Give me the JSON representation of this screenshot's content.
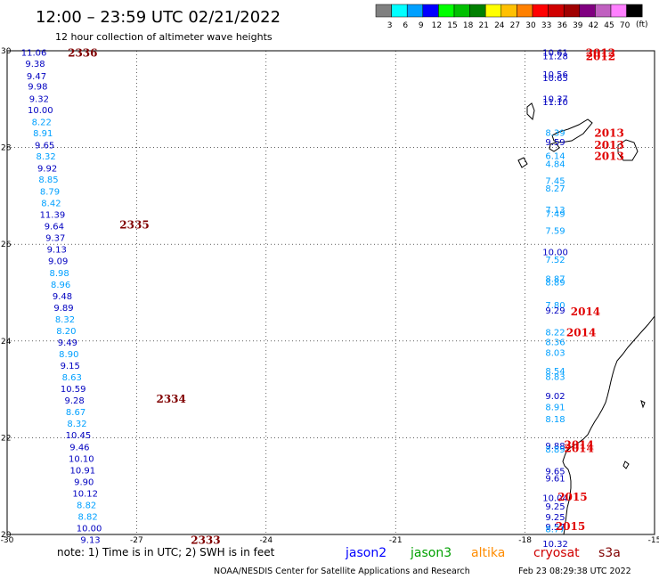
{
  "header": {
    "title": "12:00 – 23:59 UTC 02/21/2022",
    "subtitle": "12 hour collection of altimeter wave heights"
  },
  "colorbar": {
    "unit": "(ft)",
    "bins": [
      {
        "label": "3",
        "color": "#808080"
      },
      {
        "label": "6",
        "color": "#00ffff"
      },
      {
        "label": "9",
        "color": "#00a0ff"
      },
      {
        "label": "12",
        "color": "#0000ff"
      },
      {
        "label": "15",
        "color": "#00ff00"
      },
      {
        "label": "18",
        "color": "#00c000"
      },
      {
        "label": "21",
        "color": "#008000"
      },
      {
        "label": "24",
        "color": "#ffff00"
      },
      {
        "label": "27",
        "color": "#ffc000"
      },
      {
        "label": "30",
        "color": "#ff8000"
      },
      {
        "label": "33",
        "color": "#ff0000"
      },
      {
        "label": "36",
        "color": "#d00000"
      },
      {
        "label": "39",
        "color": "#a00000"
      },
      {
        "label": "42",
        "color": "#800080"
      },
      {
        "label": "45",
        "color": "#c060c0"
      },
      {
        "label": "70",
        "color": "#ff80ff"
      },
      {
        "label": "",
        "color": "#000000"
      }
    ]
  },
  "map": {
    "lon_range": [
      -30,
      -15
    ],
    "lat_range": [
      20,
      30
    ],
    "lon_ticks": [
      "-30",
      "-27",
      "-24",
      "-21",
      "-18",
      "-15"
    ],
    "lat_ticks": [
      "30",
      "28",
      "26",
      "24",
      "22",
      "20"
    ]
  },
  "chart_data": {
    "type": "scatter",
    "title": "12:00 – 23:59 UTC 02/21/2022",
    "subtitle": "12 hour collection of altimeter wave heights",
    "xlim": [
      -30,
      -15
    ],
    "ylim": [
      20,
      30
    ],
    "tracks": [
      {
        "name": "west",
        "points": [
          {
            "lon": -29.38,
            "lat": 29.95,
            "swh": "11.06",
            "color": "#0000c0"
          },
          {
            "lon": -29.35,
            "lat": 29.72,
            "swh": "9.38",
            "color": "#0000c0"
          },
          {
            "lon": -29.32,
            "lat": 29.47,
            "swh": "9.47",
            "color": "#0000c0"
          },
          {
            "lon": -29.29,
            "lat": 29.25,
            "swh": "9.98",
            "color": "#0000c0"
          },
          {
            "lon": -29.26,
            "lat": 29.0,
            "swh": "9.32",
            "color": "#0000c0"
          },
          {
            "lon": -29.23,
            "lat": 28.77,
            "swh": "10.00",
            "color": "#0000c0"
          },
          {
            "lon": -29.2,
            "lat": 28.52,
            "swh": "8.22",
            "color": "#00a0ff"
          },
          {
            "lon": -29.17,
            "lat": 28.29,
            "swh": "8.91",
            "color": "#00a0ff"
          },
          {
            "lon": -29.13,
            "lat": 28.04,
            "swh": "9.65",
            "color": "#0000c0"
          },
          {
            "lon": -29.1,
            "lat": 27.81,
            "swh": "8.32",
            "color": "#00a0ff"
          },
          {
            "lon": -29.07,
            "lat": 27.56,
            "swh": "9.92",
            "color": "#0000c0"
          },
          {
            "lon": -29.04,
            "lat": 27.33,
            "swh": "8.85",
            "color": "#00a0ff"
          },
          {
            "lon": -29.01,
            "lat": 27.08,
            "swh": "8.79",
            "color": "#00a0ff"
          },
          {
            "lon": -28.98,
            "lat": 26.84,
            "swh": "8.42",
            "color": "#00a0ff"
          },
          {
            "lon": -28.95,
            "lat": 26.6,
            "swh": "11.39",
            "color": "#0000c0"
          },
          {
            "lon": -28.91,
            "lat": 26.36,
            "swh": "9.64",
            "color": "#0000c0"
          },
          {
            "lon": -28.88,
            "lat": 26.12,
            "swh": "9.37",
            "color": "#0000c0"
          },
          {
            "lon": -28.85,
            "lat": 25.88,
            "swh": "9.13",
            "color": "#0000c0"
          },
          {
            "lon": -28.82,
            "lat": 25.64,
            "swh": "9.09",
            "color": "#0000c0"
          },
          {
            "lon": -28.79,
            "lat": 25.4,
            "swh": "8.98",
            "color": "#00a0ff"
          },
          {
            "lon": -28.76,
            "lat": 25.16,
            "swh": "8.96",
            "color": "#00a0ff"
          },
          {
            "lon": -28.72,
            "lat": 24.92,
            "swh": "9.48",
            "color": "#0000c0"
          },
          {
            "lon": -28.69,
            "lat": 24.68,
            "swh": "9.89",
            "color": "#0000c0"
          },
          {
            "lon": -28.66,
            "lat": 24.44,
            "swh": "8.32",
            "color": "#00a0ff"
          },
          {
            "lon": -28.63,
            "lat": 24.2,
            "swh": "8.20",
            "color": "#00a0ff"
          },
          {
            "lon": -28.6,
            "lat": 23.96,
            "swh": "9.49",
            "color": "#0000c0"
          },
          {
            "lon": -28.57,
            "lat": 23.72,
            "swh": "8.90",
            "color": "#00a0ff"
          },
          {
            "lon": -28.54,
            "lat": 23.48,
            "swh": "9.15",
            "color": "#0000c0"
          },
          {
            "lon": -28.5,
            "lat": 23.24,
            "swh": "8.63",
            "color": "#00a0ff"
          },
          {
            "lon": -28.47,
            "lat": 23.0,
            "swh": "10.59",
            "color": "#0000c0"
          },
          {
            "lon": -28.44,
            "lat": 22.76,
            "swh": "9.28",
            "color": "#0000c0"
          },
          {
            "lon": -28.41,
            "lat": 22.52,
            "swh": "8.67",
            "color": "#00a0ff"
          },
          {
            "lon": -28.38,
            "lat": 22.28,
            "swh": "8.32",
            "color": "#00a0ff"
          },
          {
            "lon": -28.35,
            "lat": 22.04,
            "swh": "10.45",
            "color": "#0000c0"
          },
          {
            "lon": -28.32,
            "lat": 21.8,
            "swh": "9.46",
            "color": "#0000c0"
          },
          {
            "lon": -28.28,
            "lat": 21.56,
            "swh": "10.10",
            "color": "#0000c0"
          },
          {
            "lon": -28.25,
            "lat": 21.32,
            "swh": "10.91",
            "color": "#0000c0"
          },
          {
            "lon": -28.22,
            "lat": 21.08,
            "swh": "9.90",
            "color": "#0000c0"
          },
          {
            "lon": -28.19,
            "lat": 20.84,
            "swh": "10.12",
            "color": "#0000c0"
          },
          {
            "lon": -28.16,
            "lat": 20.6,
            "swh": "8.82",
            "color": "#00a0ff"
          },
          {
            "lon": -28.13,
            "lat": 20.36,
            "swh": "8.82",
            "color": "#00a0ff"
          },
          {
            "lon": -28.1,
            "lat": 20.12,
            "swh": "10.00",
            "color": "#0000c0"
          },
          {
            "lon": -28.07,
            "lat": 19.88,
            "swh": "9.13",
            "color": "#0000c0"
          }
        ]
      },
      {
        "name": "east",
        "points": [
          {
            "lon": -17.3,
            "lat": 29.95,
            "swh": "10.61",
            "color": "#0000c0"
          },
          {
            "lon": -17.3,
            "lat": 29.88,
            "swh": "11.28",
            "color": "#0000c0"
          },
          {
            "lon": -17.3,
            "lat": 29.5,
            "swh": "10.56",
            "color": "#0000c0"
          },
          {
            "lon": -17.3,
            "lat": 29.43,
            "swh": "10.65",
            "color": "#0000c0"
          },
          {
            "lon": -17.3,
            "lat": 29.0,
            "swh": "10.37",
            "color": "#0000c0"
          },
          {
            "lon": -17.3,
            "lat": 28.93,
            "swh": "11.10",
            "color": "#0000c0"
          },
          {
            "lon": -17.3,
            "lat": 28.3,
            "swh": "8.39",
            "color": "#00a0ff"
          },
          {
            "lon": -17.3,
            "lat": 28.1,
            "swh": "9.59",
            "color": "#0000c0"
          },
          {
            "lon": -17.3,
            "lat": 27.82,
            "swh": "6.14",
            "color": "#00a0ff"
          },
          {
            "lon": -17.3,
            "lat": 27.65,
            "swh": "4.84",
            "color": "#00a0ff"
          },
          {
            "lon": -17.3,
            "lat": 27.3,
            "swh": "7.45",
            "color": "#00a0ff"
          },
          {
            "lon": -17.3,
            "lat": 27.15,
            "swh": "8.27",
            "color": "#00a0ff"
          },
          {
            "lon": -17.3,
            "lat": 26.7,
            "swh": "7.13",
            "color": "#00a0ff"
          },
          {
            "lon": -17.3,
            "lat": 26.62,
            "swh": "7.49",
            "color": "#00a0ff"
          },
          {
            "lon": -17.3,
            "lat": 26.27,
            "swh": "7.59",
            "color": "#00a0ff"
          },
          {
            "lon": -17.3,
            "lat": 25.83,
            "swh": "10.00",
            "color": "#0000c0"
          },
          {
            "lon": -17.3,
            "lat": 25.67,
            "swh": "7.52",
            "color": "#00a0ff"
          },
          {
            "lon": -17.3,
            "lat": 25.28,
            "swh": "8.87",
            "color": "#00a0ff"
          },
          {
            "lon": -17.3,
            "lat": 25.2,
            "swh": "8.89",
            "color": "#00a0ff"
          },
          {
            "lon": -17.3,
            "lat": 24.73,
            "swh": "7.80",
            "color": "#00a0ff"
          },
          {
            "lon": -17.3,
            "lat": 24.62,
            "swh": "9.29",
            "color": "#0000c0"
          },
          {
            "lon": -17.3,
            "lat": 24.17,
            "swh": "8.22",
            "color": "#00a0ff"
          },
          {
            "lon": -17.3,
            "lat": 23.97,
            "swh": "8.36",
            "color": "#00a0ff"
          },
          {
            "lon": -17.3,
            "lat": 23.75,
            "swh": "8.03",
            "color": "#00a0ff"
          },
          {
            "lon": -17.3,
            "lat": 23.37,
            "swh": "8.54",
            "color": "#00a0ff"
          },
          {
            "lon": -17.3,
            "lat": 23.25,
            "swh": "8.83",
            "color": "#00a0ff"
          },
          {
            "lon": -17.3,
            "lat": 22.85,
            "swh": "9.02",
            "color": "#0000c0"
          },
          {
            "lon": -17.3,
            "lat": 22.62,
            "swh": "8.91",
            "color": "#00a0ff"
          },
          {
            "lon": -17.3,
            "lat": 22.38,
            "swh": "8.18",
            "color": "#00a0ff"
          },
          {
            "lon": -17.3,
            "lat": 21.82,
            "swh": "9.88",
            "color": "#0000c0"
          },
          {
            "lon": -17.3,
            "lat": 21.75,
            "swh": "8.89",
            "color": "#00a0ff"
          },
          {
            "lon": -17.3,
            "lat": 21.3,
            "swh": "9.65",
            "color": "#0000c0"
          },
          {
            "lon": -17.3,
            "lat": 21.15,
            "swh": "9.61",
            "color": "#0000c0"
          },
          {
            "lon": -17.3,
            "lat": 20.75,
            "swh": "10.04",
            "color": "#0000c0"
          },
          {
            "lon": -17.3,
            "lat": 20.57,
            "swh": "9.25",
            "color": "#0000c0"
          },
          {
            "lon": -17.3,
            "lat": 20.35,
            "swh": "9.25",
            "color": "#0000c0"
          },
          {
            "lon": -17.3,
            "lat": 20.15,
            "swh": "9.57",
            "color": "#0000c0"
          },
          {
            "lon": -17.3,
            "lat": 20.1,
            "swh": "8.77",
            "color": "#00a0ff"
          },
          {
            "lon": -17.3,
            "lat": 19.8,
            "swh": "10.32",
            "color": "#0000c0"
          }
        ]
      }
    ],
    "time_labels": [
      {
        "text": "2336",
        "lon": -28.25,
        "lat": 29.95,
        "color": "#800000"
      },
      {
        "text": "2335",
        "lon": -27.05,
        "lat": 26.4,
        "color": "#800000"
      },
      {
        "text": "2334",
        "lon": -26.2,
        "lat": 22.8,
        "color": "#800000"
      },
      {
        "text": "2333",
        "lon": -25.4,
        "lat": 19.88,
        "color": "#800000"
      },
      {
        "text": "2012",
        "lon": -16.25,
        "lat": 29.95,
        "color": "#e00000"
      },
      {
        "text": "2012",
        "lon": -16.25,
        "lat": 29.88,
        "color": "#e00000"
      },
      {
        "text": "2013",
        "lon": -16.05,
        "lat": 28.3,
        "color": "#e00000"
      },
      {
        "text": "2013",
        "lon": -16.05,
        "lat": 28.05,
        "color": "#e00000"
      },
      {
        "text": "2013",
        "lon": -16.05,
        "lat": 27.82,
        "color": "#e00000"
      },
      {
        "text": "2014",
        "lon": -16.6,
        "lat": 24.6,
        "color": "#e00000"
      },
      {
        "text": "2014",
        "lon": -16.7,
        "lat": 24.17,
        "color": "#e00000"
      },
      {
        "text": "2014",
        "lon": -16.75,
        "lat": 21.85,
        "color": "#e00000"
      },
      {
        "text": "2014",
        "lon": -16.75,
        "lat": 21.78,
        "color": "#e00000"
      },
      {
        "text": "2015",
        "lon": -16.9,
        "lat": 20.77,
        "color": "#e00000"
      },
      {
        "text": "2015",
        "lon": -16.95,
        "lat": 20.17,
        "color": "#e00000"
      }
    ]
  },
  "footer": {
    "note": "note: 1) Time is in UTC; 2) SWH is in feet",
    "satellites": [
      {
        "name": "jason2",
        "color": "#0000ff"
      },
      {
        "name": "jason3",
        "color": "#00a000"
      },
      {
        "name": "altika",
        "color": "#ff8c00"
      },
      {
        "name": "cryosat",
        "color": "#d00000"
      },
      {
        "name": "s3a",
        "color": "#800000"
      }
    ],
    "credit": "NOAA/NESDIS Center for Satellite Applications and Research",
    "timestamp": "Feb 23 08:29:38 UTC 2022"
  }
}
